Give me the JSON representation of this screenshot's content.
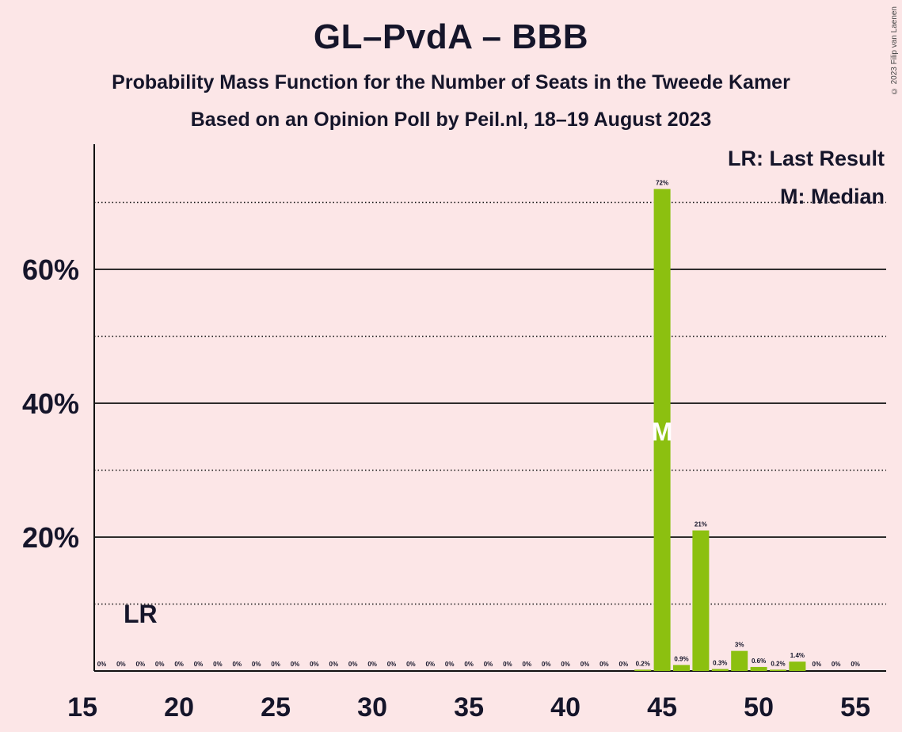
{
  "title": "GL–PvdA – BBB",
  "subtitle1": "Probability Mass Function for the Number of Seats in the Tweede Kamer",
  "subtitle2": "Based on an Opinion Poll by Peil.nl, 18–19 August 2023",
  "copyright": "© 2023 Filip van Laenen",
  "legend": {
    "lr": "LR: Last Result",
    "m": "M: Median"
  },
  "markers": {
    "last_result_label": "LR",
    "last_result_seat": 18,
    "median_label": "M",
    "median_seat": 45
  },
  "colors": {
    "bar": "#8cc010",
    "background": "#fce6e7",
    "text": "#15152a"
  },
  "chart_data": {
    "type": "bar",
    "x": [
      16,
      17,
      18,
      19,
      20,
      21,
      22,
      23,
      24,
      25,
      26,
      27,
      28,
      29,
      30,
      31,
      32,
      33,
      34,
      35,
      36,
      37,
      38,
      39,
      40,
      41,
      42,
      43,
      44,
      45,
      46,
      47,
      48,
      49,
      50,
      51,
      52,
      53,
      54,
      55
    ],
    "values": [
      0,
      0,
      0,
      0,
      0,
      0,
      0,
      0,
      0,
      0,
      0,
      0,
      0,
      0,
      0,
      0,
      0,
      0,
      0,
      0,
      0,
      0,
      0,
      0,
      0,
      0,
      0,
      0,
      0.2,
      72,
      0.9,
      21,
      0.3,
      3,
      0.6,
      0.2,
      1.4,
      0,
      0,
      0
    ],
    "labels": [
      "0%",
      "0%",
      "0%",
      "0%",
      "0%",
      "0%",
      "0%",
      "0%",
      "0%",
      "0%",
      "0%",
      "0%",
      "0%",
      "0%",
      "0%",
      "0%",
      "0%",
      "0%",
      "0%",
      "0%",
      "0%",
      "0%",
      "0%",
      "0%",
      "0%",
      "0%",
      "0%",
      "0%",
      "0.2%",
      "72%",
      "0.9%",
      "21%",
      "0.3%",
      "3%",
      "0.6%",
      "0.2%",
      "1.4%",
      "0%",
      "0%",
      "0%"
    ],
    "xticks": [
      15,
      20,
      25,
      30,
      35,
      40,
      45,
      50,
      55
    ],
    "yticks": [
      20,
      40,
      60
    ],
    "ytick_labels": [
      "20%",
      "40%",
      "60%"
    ],
    "ylim": [
      0,
      78
    ],
    "xlim": [
      15,
      55
    ],
    "solid_grid": [
      20,
      40,
      60
    ],
    "dotted_grid": [
      10,
      30,
      50,
      70
    ],
    "legend_placement": "top-right"
  }
}
